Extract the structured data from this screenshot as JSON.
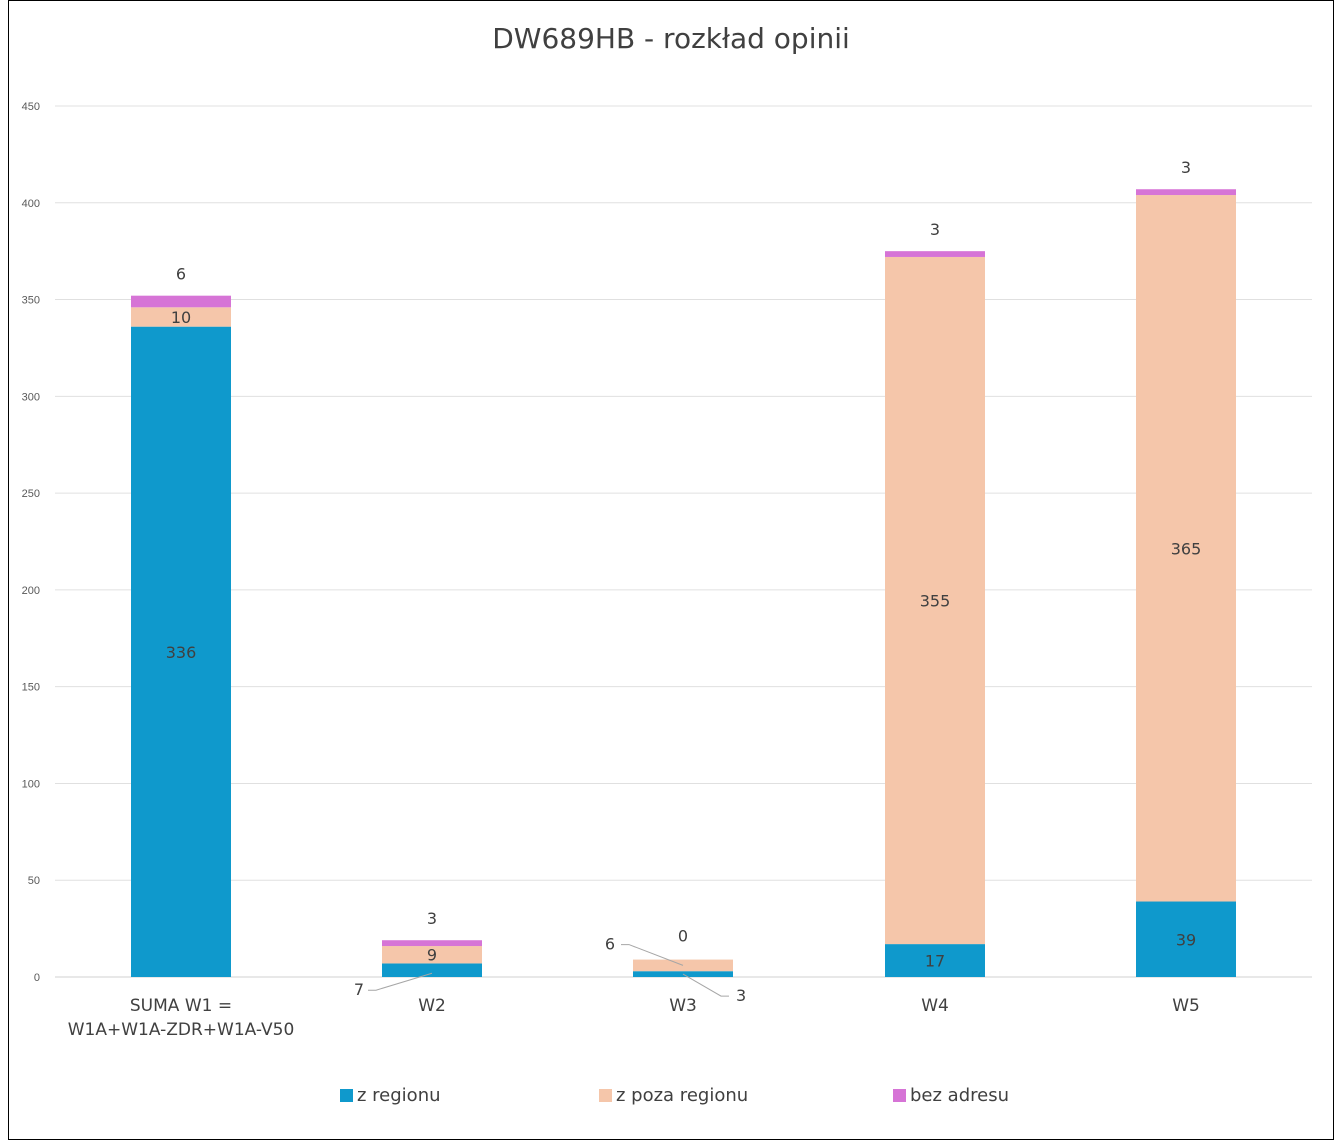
{
  "chart_data": {
    "type": "bar",
    "stacked": true,
    "title": "DW689HB - rozkład opinii",
    "categories": [
      [
        "SUMA W1 =",
        "W1A+W1A-ZDR+W1A-V50"
      ],
      [
        "W2"
      ],
      [
        "W3"
      ],
      [
        "W4"
      ],
      [
        "W5"
      ]
    ],
    "series": [
      {
        "name": "z regionu",
        "color": "#0F99CC",
        "values": [
          336,
          7,
          3,
          17,
          39
        ]
      },
      {
        "name": "z poza regionu",
        "color": "#F5C6AA",
        "values": [
          10,
          9,
          6,
          355,
          365
        ]
      },
      {
        "name": "bez adresu",
        "color": "#D674D6",
        "values": [
          6,
          3,
          0,
          3,
          3
        ]
      }
    ],
    "ylim": [
      0,
      450
    ],
    "yticks": [
      0,
      50,
      100,
      150,
      200,
      250,
      300,
      350,
      400,
      450
    ],
    "grid": true,
    "legend_position": "bottom",
    "xlabel": "",
    "ylabel": ""
  }
}
